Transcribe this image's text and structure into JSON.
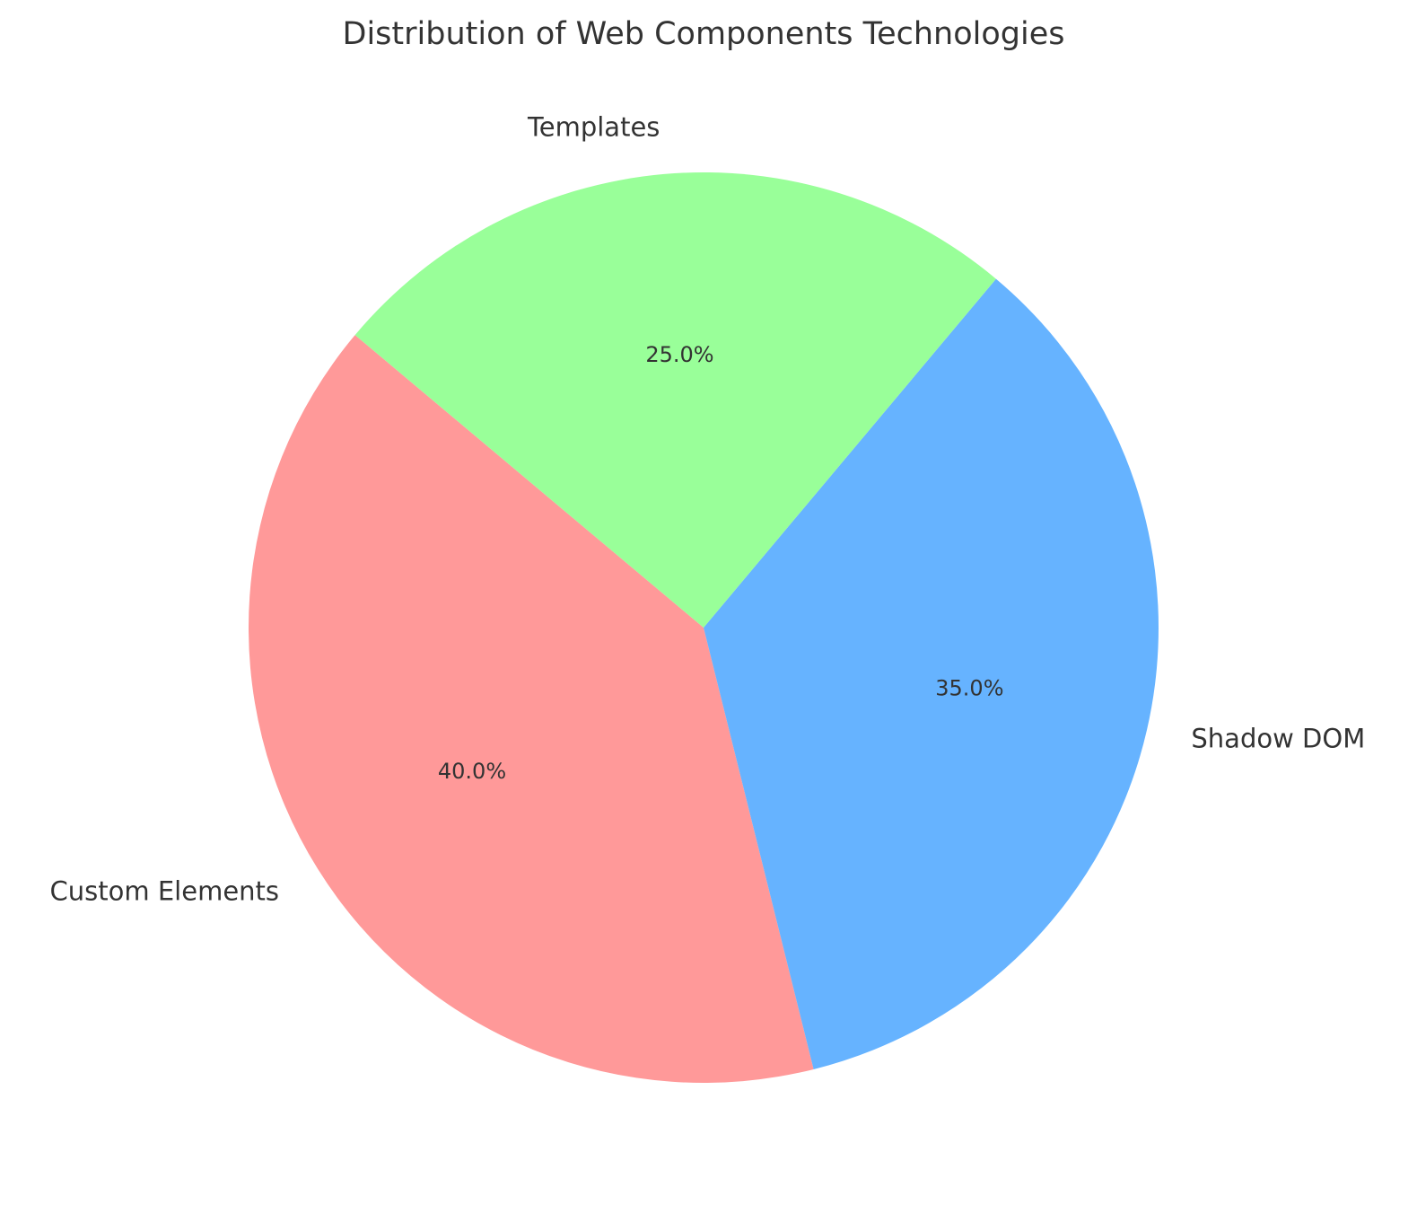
{
  "chart_data": {
    "type": "pie",
    "title": "Distribution of Web Components Technologies",
    "categories": [
      "Custom Elements",
      "Shadow DOM",
      "Templates"
    ],
    "values": [
      40.0,
      35.0,
      25.0
    ],
    "percent_labels": [
      "40.0%",
      "35.0%",
      "25.0%"
    ],
    "colors": [
      "#ff9999",
      "#66b3ff",
      "#99ff99"
    ],
    "start_angle_deg": 140,
    "direction": "counterclockwise",
    "legend": "none"
  }
}
